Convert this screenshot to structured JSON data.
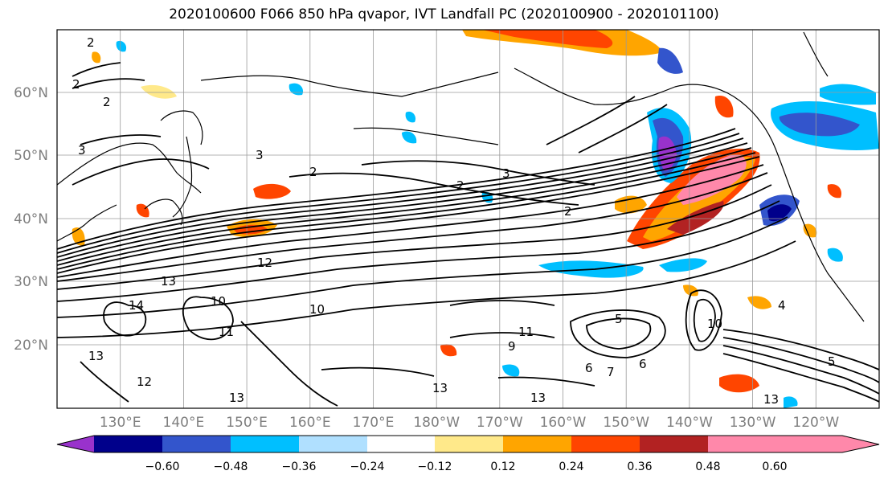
{
  "title": "2020100600 F066 850 hPa qvapor, IVT Landfall PC (2020100900 - 2020101100)",
  "lon_labels": [
    "130°E",
    "140°E",
    "150°E",
    "160°E",
    "170°E",
    "180°W",
    "170°W",
    "160°W",
    "150°W",
    "140°W",
    "130°W",
    "120°W"
  ],
  "lat_labels": [
    "60°N",
    "50°N",
    "40°N",
    "30°N",
    "20°N"
  ],
  "colorbar": {
    "colors": [
      "#9932cc",
      "#00008b",
      "#3355cc",
      "#00bfff",
      "#b0e0ff",
      "#ffffff",
      "#ffe98a",
      "#ffa500",
      "#ff4500",
      "#b22222",
      "#ff88aa"
    ],
    "tick_labels": [
      "−0.60",
      "−0.48",
      "−0.36",
      "−0.24",
      "−0.12",
      "0.12",
      "0.24",
      "0.36",
      "0.48",
      "0.60"
    ]
  },
  "contour_labels": [
    "2",
    "2",
    "2",
    "3",
    "3",
    "2",
    "3",
    "2",
    "2",
    "12",
    "13",
    "14",
    "10",
    "11",
    "12",
    "13",
    "13",
    "10",
    "11",
    "9",
    "13",
    "6",
    "5",
    "10",
    "6",
    "13",
    "4",
    "5",
    "13",
    "7"
  ]
}
